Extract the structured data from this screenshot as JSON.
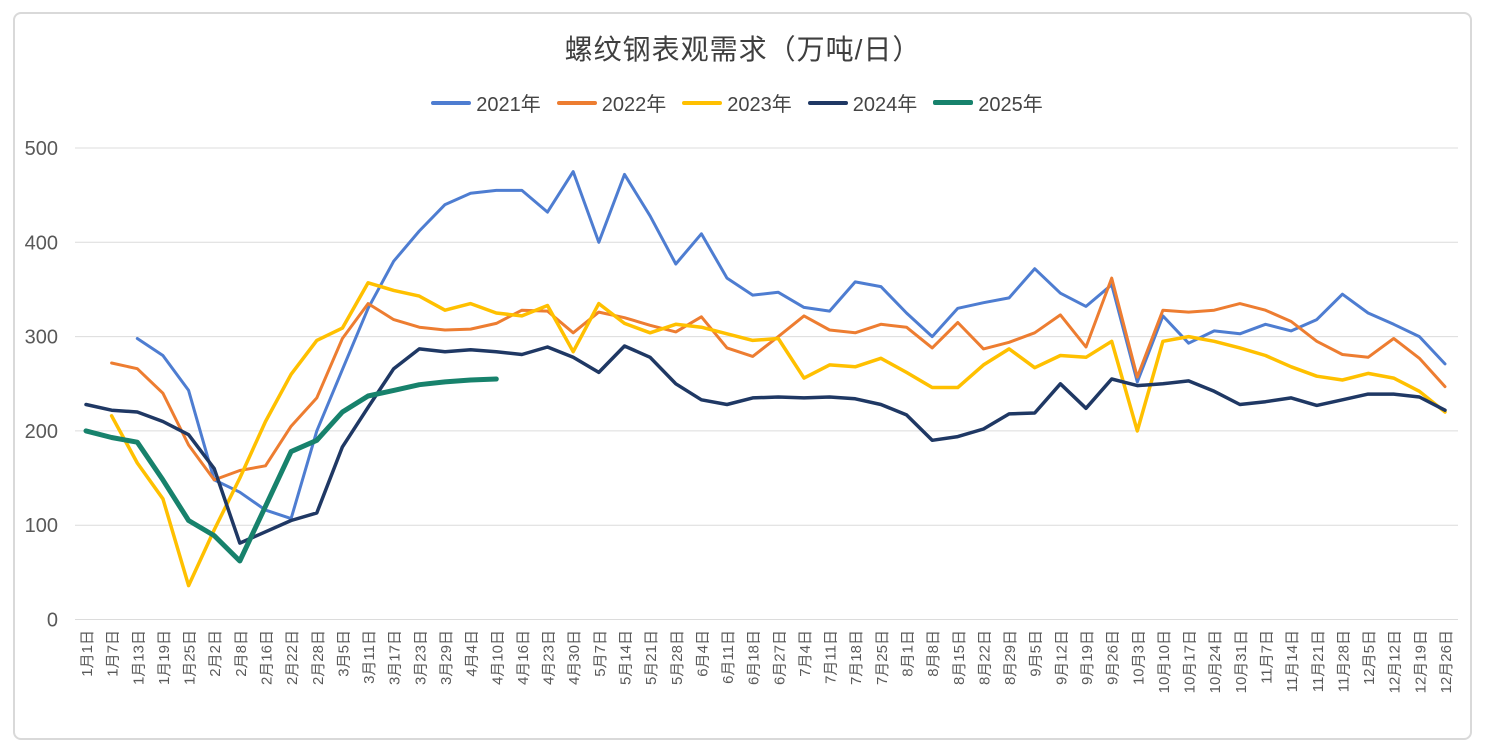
{
  "chart_data": {
    "type": "line",
    "title": "螺纹钢表观需求（万吨/日）",
    "xlabel": "",
    "ylabel": "",
    "ylim": [
      0,
      500
    ],
    "y_ticks": [
      0,
      100,
      200,
      300,
      400,
      500
    ],
    "grid": "horizontal",
    "legend_position": "top-center",
    "categories": [
      "1月1日",
      "1月7日",
      "1月13日",
      "1月19日",
      "1月25日",
      "2月2日",
      "2月8日",
      "2月16日",
      "2月22日",
      "2月28日",
      "3月5日",
      "3月11日",
      "3月17日",
      "3月23日",
      "3月29日",
      "4月4日",
      "4月10日",
      "4月16日",
      "4月23日",
      "4月30日",
      "5月7日",
      "5月14日",
      "5月21日",
      "5月28日",
      "6月4日",
      "6月11日",
      "6月18日",
      "6月27日",
      "7月4日",
      "7月11日",
      "7月18日",
      "7月25日",
      "8月1日",
      "8月8日",
      "8月15日",
      "8月22日",
      "8月29日",
      "9月5日",
      "9月12日",
      "9月19日",
      "9月26日",
      "10月3日",
      "10月10日",
      "10月17日",
      "10月24日",
      "10月31日",
      "11月7日",
      "11月14日",
      "11月21日",
      "11月28日",
      "12月5日",
      "12月12日",
      "12月19日",
      "12月26日"
    ],
    "series": [
      {
        "name": "2021年",
        "color": "#4E7DD1",
        "stroke_width": 3,
        "values": [
          null,
          null,
          298,
          280,
          243,
          148,
          135,
          116,
          107,
          200,
          265,
          330,
          380,
          412,
          440,
          452,
          455,
          455,
          432,
          475,
          400,
          472,
          428,
          377,
          409,
          362,
          344,
          347,
          331,
          327,
          358,
          353,
          325,
          300,
          330,
          336,
          341,
          372,
          346,
          332,
          355,
          252,
          322,
          293,
          306,
          303,
          313,
          306,
          318,
          345,
          325,
          313,
          300,
          271
        ]
      },
      {
        "name": "2022年",
        "color": "#ED7D31",
        "stroke_width": 3,
        "values": [
          null,
          272,
          266,
          240,
          185,
          148,
          158,
          163,
          205,
          235,
          298,
          335,
          318,
          310,
          307,
          308,
          314,
          328,
          327,
          304,
          326,
          320,
          312,
          305,
          321,
          288,
          279,
          300,
          322,
          307,
          304,
          313,
          310,
          288,
          315,
          287,
          294,
          304,
          323,
          289,
          362,
          257,
          328,
          326,
          328,
          335,
          328,
          316,
          295,
          281,
          278,
          298,
          277,
          247
        ]
      },
      {
        "name": "2023年",
        "color": "#FFC000",
        "stroke_width": 3.5,
        "values": [
          null,
          216,
          166,
          128,
          36,
          95,
          150,
          210,
          260,
          296,
          309,
          357,
          349,
          343,
          328,
          335,
          325,
          322,
          333,
          284,
          335,
          314,
          304,
          313,
          310,
          303,
          296,
          298,
          256,
          270,
          268,
          277,
          262,
          246,
          246,
          270,
          287,
          267,
          280,
          278,
          295,
          200,
          295,
          300,
          295,
          288,
          280,
          268,
          258,
          254,
          261,
          256,
          242,
          220
        ]
      },
      {
        "name": "2024年",
        "color": "#1F3864",
        "stroke_width": 3.5,
        "values": [
          228,
          222,
          220,
          210,
          196,
          160,
          81,
          93,
          105,
          113,
          183,
          225,
          266,
          287,
          284,
          286,
          284,
          281,
          289,
          278,
          262,
          290,
          278,
          250,
          233,
          228,
          235,
          236,
          235,
          236,
          234,
          228,
          217,
          190,
          194,
          202,
          218,
          219,
          250,
          224,
          255,
          248,
          250,
          253,
          242,
          228,
          231,
          235,
          227,
          233,
          239,
          239,
          236,
          222
        ]
      },
      {
        "name": "2025年",
        "color": "#17826C",
        "stroke_width": 5,
        "values": [
          200,
          193,
          188,
          148,
          105,
          89,
          62,
          120,
          178,
          190,
          220,
          237,
          243,
          249,
          252,
          254,
          255,
          null,
          null,
          null,
          null,
          null,
          null,
          null,
          null,
          null,
          null,
          null,
          null,
          null,
          null,
          null,
          null,
          null,
          null,
          null,
          null,
          null,
          null,
          null,
          null,
          null,
          null,
          null,
          null,
          null,
          null,
          null,
          null,
          null,
          null,
          null,
          null,
          null
        ]
      }
    ]
  }
}
